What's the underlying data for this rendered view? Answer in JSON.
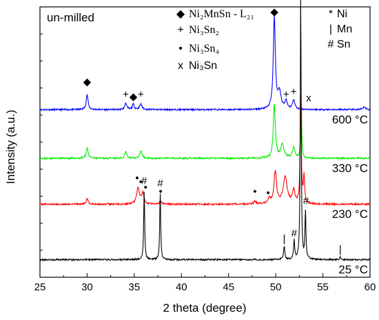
{
  "chart_data": {
    "type": "line",
    "title": "un-milled",
    "xlabel": "2 theta (degree)",
    "ylabel": "Intensity (a.u.)",
    "xlim": [
      25,
      60
    ],
    "x_ticks": [
      25,
      30,
      35,
      40,
      45,
      50,
      55,
      60
    ],
    "grid": false,
    "legend_left": [
      {
        "symbol": "diamond",
        "marker": "◆",
        "label": "Ni₂MnSn - L₂₁"
      },
      {
        "symbol": "plus",
        "marker": "+",
        "label": "Ni₃Sn₂"
      },
      {
        "symbol": "dot",
        "marker": "•",
        "label": "Ni₃Sn₄"
      },
      {
        "symbol": "x",
        "marker": "x",
        "label": "Ni₃Sn"
      }
    ],
    "legend_right": [
      {
        "marker": "*",
        "label": "Ni"
      },
      {
        "marker": "|",
        "label": "Mn"
      },
      {
        "marker": "#",
        "label": "Sn"
      }
    ],
    "series": [
      {
        "name": "600 °C",
        "color": "#0000ff",
        "baseline": 0.62,
        "noise_seed": 11,
        "peaks": [
          {
            "x": 30.0,
            "h": 0.055,
            "w": 0.12
          },
          {
            "x": 34.1,
            "h": 0.025,
            "w": 0.12
          },
          {
            "x": 34.9,
            "h": 0.02,
            "w": 0.12
          },
          {
            "x": 35.7,
            "h": 0.02,
            "w": 0.15
          },
          {
            "x": 49.85,
            "h": 0.34,
            "w": 0.13
          },
          {
            "x": 50.4,
            "h": 0.06,
            "w": 0.2
          },
          {
            "x": 51.1,
            "h": 0.03,
            "w": 0.15
          },
          {
            "x": 51.9,
            "h": 0.035,
            "w": 0.15
          },
          {
            "x": 59.4,
            "h": 0.01,
            "w": 0.15
          }
        ]
      },
      {
        "name": "330 °C",
        "color": "#00ee00",
        "baseline": 0.44,
        "noise_seed": 23,
        "peaks": [
          {
            "x": 30.0,
            "h": 0.04,
            "w": 0.12
          },
          {
            "x": 34.1,
            "h": 0.025,
            "w": 0.12
          },
          {
            "x": 35.7,
            "h": 0.025,
            "w": 0.15
          },
          {
            "x": 49.85,
            "h": 0.2,
            "w": 0.13
          },
          {
            "x": 50.7,
            "h": 0.05,
            "w": 0.2
          },
          {
            "x": 51.9,
            "h": 0.04,
            "w": 0.15
          },
          {
            "x": 52.7,
            "h": 0.22,
            "w": 0.06
          }
        ]
      },
      {
        "name": "230 °C",
        "color": "#ff0000",
        "baseline": 0.27,
        "noise_seed": 37,
        "peaks": [
          {
            "x": 30.0,
            "h": 0.02,
            "w": 0.12
          },
          {
            "x": 35.4,
            "h": 0.06,
            "w": 0.18
          },
          {
            "x": 35.9,
            "h": 0.04,
            "w": 0.15
          },
          {
            "x": 37.8,
            "h": 0.01,
            "w": 0.15
          },
          {
            "x": 47.8,
            "h": 0.01,
            "w": 0.15
          },
          {
            "x": 49.3,
            "h": 0.02,
            "w": 0.15
          },
          {
            "x": 49.95,
            "h": 0.12,
            "w": 0.16
          },
          {
            "x": 51.0,
            "h": 0.1,
            "w": 0.25
          },
          {
            "x": 51.9,
            "h": 0.05,
            "w": 0.15
          },
          {
            "x": 52.65,
            "h": 0.4,
            "w": 0.07
          },
          {
            "x": 53.0,
            "h": 0.1,
            "w": 0.08
          }
        ]
      },
      {
        "name": "25 °C",
        "color": "#000000",
        "baseline": 0.065,
        "noise_seed": 53,
        "peaks": [
          {
            "x": 36.05,
            "h": 0.26,
            "w": 0.06
          },
          {
            "x": 37.75,
            "h": 0.25,
            "w": 0.06
          },
          {
            "x": 50.9,
            "h": 0.05,
            "w": 0.08
          },
          {
            "x": 51.95,
            "h": 0.07,
            "w": 0.07
          },
          {
            "x": 52.65,
            "h": 1.0,
            "w": 0.055
          },
          {
            "x": 53.15,
            "h": 0.18,
            "w": 0.06
          },
          {
            "x": 56.85,
            "h": 0.01,
            "w": 0.06
          }
        ]
      }
    ],
    "annotations": [
      {
        "symbol": "◆",
        "x": 30.0,
        "y": 0.71
      },
      {
        "symbol": "+",
        "x": 34.1,
        "y": 0.665
      },
      {
        "symbol": "◆",
        "x": 34.9,
        "y": 0.655
      },
      {
        "symbol": "+",
        "x": 35.7,
        "y": 0.665
      },
      {
        "symbol": "◆",
        "x": 49.85,
        "y": 0.97
      },
      {
        "symbol": "+",
        "x": 51.1,
        "y": 0.665
      },
      {
        "symbol": "+",
        "x": 51.9,
        "y": 0.675
      },
      {
        "symbol": "*",
        "x": 52.65,
        "y": 1.08
      },
      {
        "symbol": "x",
        "x": 53.5,
        "y": 0.65
      },
      {
        "symbol": "•",
        "x": 35.3,
        "y": 0.355
      },
      {
        "symbol": "•",
        "x": 35.7,
        "y": 0.34
      },
      {
        "symbol": "•",
        "x": 36.2,
        "y": 0.32
      },
      {
        "symbol": "•",
        "x": 37.8,
        "y": 0.305
      },
      {
        "symbol": "•",
        "x": 47.8,
        "y": 0.305
      },
      {
        "symbol": "•",
        "x": 49.2,
        "y": 0.3
      },
      {
        "symbol": "#",
        "x": 36.05,
        "y": 0.345
      },
      {
        "symbol": "#",
        "x": 37.75,
        "y": 0.335
      },
      {
        "symbol": "|",
        "x": 50.9,
        "y": 0.13
      },
      {
        "symbol": "#",
        "x": 51.95,
        "y": 0.15
      },
      {
        "symbol": "#",
        "x": 53.2,
        "y": 0.27
      },
      {
        "symbol": "|",
        "x": 56.85,
        "y": 0.09
      }
    ]
  }
}
